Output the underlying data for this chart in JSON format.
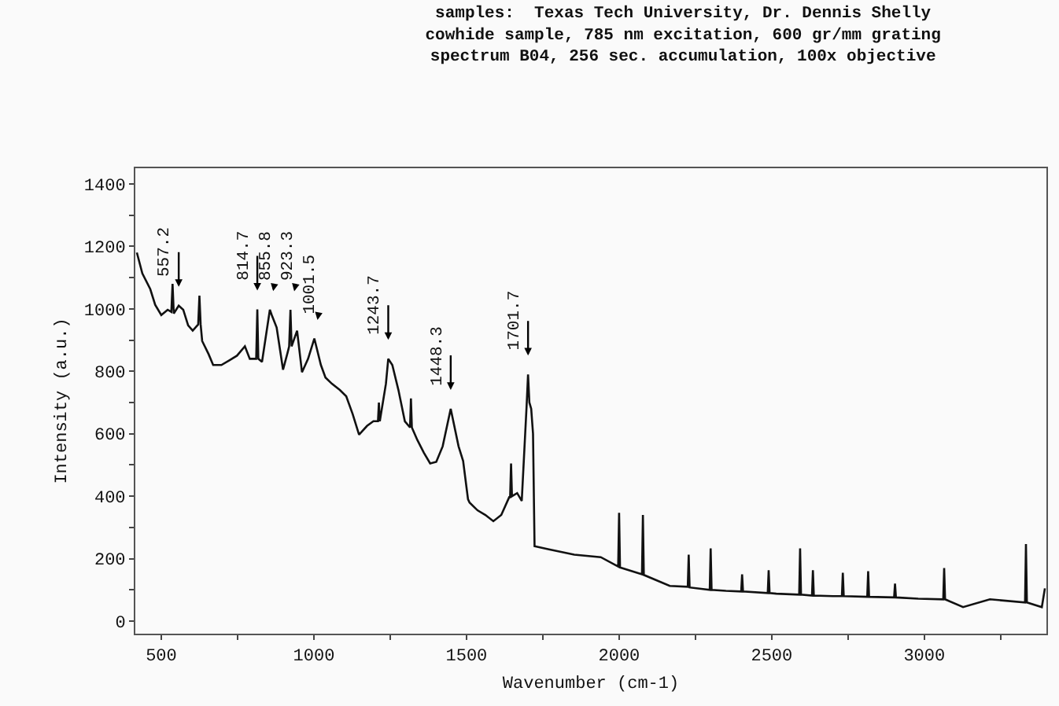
{
  "chart_data": {
    "type": "line",
    "title": "samples:  Texas Tech University, Dr. Dennis Shelly\ncowhide sample, 785 nm excitation, 600 gr/mm grating\nspectrum B04, 256 sec. accumulation, 100x objective",
    "xlabel": "Wavenumber (cm-1)",
    "ylabel": "Intensity (a.u.)",
    "xlim": [
      415,
      3400
    ],
    "ylim": [
      -40,
      1450
    ],
    "xticks": [
      500,
      {
        "value": 750,
        "label": null
      },
      1000,
      {
        "value": 1250,
        "label": null
      },
      1500,
      {
        "value": 1750,
        "label": null
      },
      2000,
      {
        "value": 2250,
        "label": null
      },
      2500,
      {
        "value": 2750,
        "label": null
      },
      3000,
      {
        "value": 3250,
        "label": null
      }
    ],
    "yticks": [
      0,
      {
        "value": 100,
        "label": null
      },
      200,
      {
        "value": 300,
        "label": null
      },
      400,
      {
        "value": 500,
        "label": null
      },
      600,
      {
        "value": 700,
        "label": null
      },
      800,
      {
        "value": 900,
        "label": null
      },
      1000,
      {
        "value": 1100,
        "label": null
      },
      1200,
      {
        "value": 1300,
        "label": null
      },
      1400
    ],
    "marker": "none",
    "line_style": "solid",
    "series": [
      {
        "color": "#111111",
        "x": [
          420,
          438,
          464,
          480,
          500,
          521,
          533,
          537,
          541,
          557.2,
          572,
          588,
          603,
          621,
          625,
          629,
          634,
          655,
          670,
          697,
          723,
          748,
          774,
          790,
          811,
          814.7,
          818,
          830,
          855.8,
          862,
          878,
          899,
          914,
          919,
          923.3,
          927,
          945,
          961,
          981,
          1001.5,
          1023,
          1038,
          1059,
          1085,
          1106,
          1127,
          1148,
          1174,
          1195,
          1210,
          1213,
          1216,
          1236,
          1243.7,
          1257,
          1277,
          1298,
          1315,
          1318,
          1321,
          1339,
          1360,
          1381,
          1401,
          1422,
          1448.3,
          1474,
          1489,
          1505,
          1510,
          1536,
          1562,
          1588,
          1614,
          1640,
          1643,
          1646,
          1649,
          1666,
          1681,
          1697,
          1701.7,
          1706,
          1712,
          1718,
          1723,
          1770,
          1853,
          1940,
          1997,
          2000,
          2003,
          2075,
          2078,
          2081,
          2166,
          2225,
          2228,
          2231,
          2297,
          2300,
          2303,
          2350,
          2400,
          2403,
          2406,
          2487,
          2490,
          2493,
          2515,
          2590,
          2593,
          2596,
          2632,
          2635,
          2638,
          2700,
          2730,
          2733,
          2736,
          2813,
          2816,
          2819,
          2901,
          2904,
          2907,
          2980,
          3062,
          3065,
          3068,
          3127,
          3215,
          3330,
          3333,
          3336,
          3385,
          3395
        ],
        "values": [
          1180,
          1113,
          1063,
          1013,
          980,
          997,
          990,
          1080,
          985,
          1010,
          997,
          947,
          930,
          950,
          1042,
          950,
          897,
          855,
          820,
          820,
          835,
          850,
          880,
          840,
          840,
          998,
          840,
          830,
          997,
          980,
          940,
          805,
          860,
          880,
          997,
          880,
          930,
          797,
          840,
          905,
          820,
          780,
          760,
          740,
          720,
          663,
          597,
          625,
          640,
          640,
          700,
          640,
          760,
          840,
          820,
          740,
          640,
          620,
          713,
          620,
          580,
          540,
          505,
          510,
          560,
          680,
          560,
          513,
          390,
          380,
          355,
          340,
          320,
          340,
          397,
          397,
          505,
          400,
          410,
          385,
          690,
          790,
          700,
          680,
          600,
          240,
          230,
          213,
          205,
          175,
          347,
          172,
          150,
          340,
          148,
          113,
          110,
          213,
          108,
          100,
          233,
          100,
          97,
          95,
          150,
          95,
          90,
          163,
          90,
          88,
          85,
          233,
          85,
          82,
          163,
          82,
          80,
          80,
          155,
          80,
          78,
          160,
          78,
          76,
          120,
          76,
          72,
          70,
          170,
          70,
          45,
          70,
          60,
          247,
          60,
          45,
          105
        ]
      }
    ],
    "annotations": [
      {
        "text": "557.2",
        "x": 557.2,
        "y": 1010
      },
      {
        "text": "814.7",
        "x": 814.7,
        "y": 998
      },
      {
        "text": "855.8",
        "x": 855.8,
        "y": 997
      },
      {
        "text": "923.3",
        "x": 923.3,
        "y": 997
      },
      {
        "text": "1001.5",
        "x": 1001.5,
        "y": 905
      },
      {
        "text": "1243.7",
        "x": 1243.7,
        "y": 840
      },
      {
        "text": "1448.3",
        "x": 1448.3,
        "y": 680
      },
      {
        "text": "1701.7",
        "x": 1701.7,
        "y": 790
      }
    ]
  }
}
